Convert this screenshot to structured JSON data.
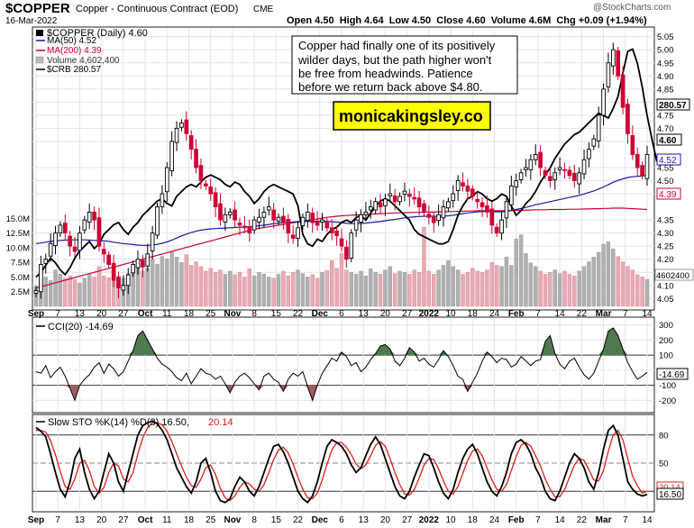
{
  "header": {
    "symbol": "$COPPER",
    "name": "Copper - Continuous Contract (EOD)",
    "exchange": "CME",
    "date": "16-Mar-2022",
    "ohlc_text": "Open 4.50  High 4.64  Low 4.50  Close 4.60  Volume 4.6M  Chg +0.09 (+1.94%)",
    "watermark": "@StockCharts.com"
  },
  "legend": {
    "price": "$COPPER (Daily) 4.60",
    "ma50": "MA(50) 4.52",
    "ma200": "MA(200) 4.39",
    "volume": "Volume 4,602,400",
    "crb": "$CRB 280.57"
  },
  "annotation": {
    "lines": [
      "Copper had finally one of its positively",
      "wilder days, but the path higher won't",
      "be free from headwinds. Patience",
      "before we return back above $4.80."
    ],
    "site": "monicakingsley.co"
  },
  "badges": {
    "crb": "280.57",
    "close": "4.60",
    "ma50": "4.52",
    "ma200": "4.39",
    "volume": "4602400",
    "cci": "-14.69",
    "sto_k": "16.50",
    "sto_d": "20.14"
  },
  "panels": {
    "cci_title": "CCI(20) -14.69",
    "sto_title_a": "Slow STO %K(14) %D(3) 16.50,",
    "sto_title_b": "20.14"
  },
  "colors": {
    "up": "#000000",
    "down": "#cc0033",
    "ma50": "#1a1aa8",
    "ma200": "#cc0033",
    "crb": "#000000",
    "vol_up": "#b0b0b0",
    "vol_down": "#e8aab4",
    "cci_fill": "#4f7a4f",
    "cci_neg_fill": "#a06060",
    "sto_d": "#e0201a",
    "grid": "#e4e4e4",
    "annotation_bg": "#ffff00"
  },
  "axes": {
    "price_ticks": [
      "5.05",
      "5.00",
      "4.95",
      "4.90",
      "4.85",
      "4.80",
      "4.75",
      "4.70",
      "4.65",
      "4.55",
      "4.50",
      "4.45",
      "4.35",
      "4.30",
      "4.25",
      "4.20",
      "4.15",
      "4.10",
      "4.05"
    ],
    "volume_ticks": [
      "15.0M",
      "12.5M",
      "10.0M",
      "7.5M",
      "5.0M",
      "2.5M"
    ],
    "cci_ticks": [
      "300",
      "200",
      "100",
      "-100",
      "-200"
    ],
    "sto_ticks": [
      "80",
      "50",
      "20"
    ],
    "x_labels": [
      "Sep",
      "7",
      "13",
      "20",
      "27",
      "Oct",
      "11",
      "18",
      "25",
      "Nov",
      "8",
      "15",
      "22",
      "Dec",
      "6",
      "13",
      "20",
      "27",
      "2022",
      "10",
      "18",
      "24",
      "Feb",
      "7",
      "14",
      "22",
      "Mar",
      "7",
      "14"
    ]
  },
  "chart_data": {
    "type": "candlestick",
    "price_range": [
      4.02,
      5.08
    ],
    "volume_range_millions": [
      0,
      17.5
    ],
    "cci_range": [
      -270,
      340
    ],
    "sto_range": [
      0,
      100
    ],
    "closes": [
      4.08,
      4.18,
      4.2,
      4.26,
      4.3,
      4.33,
      4.3,
      4.25,
      4.23,
      4.3,
      4.35,
      4.38,
      4.35,
      4.25,
      4.22,
      4.18,
      4.12,
      4.09,
      4.1,
      4.14,
      4.18,
      4.2,
      4.17,
      4.22,
      4.3,
      4.4,
      4.45,
      4.55,
      4.65,
      4.7,
      4.72,
      4.68,
      4.62,
      4.55,
      4.5,
      4.48,
      4.45,
      4.4,
      4.35,
      4.37,
      4.38,
      4.35,
      4.33,
      4.32,
      4.3,
      4.35,
      4.36,
      4.38,
      4.4,
      4.35,
      4.36,
      4.34,
      4.3,
      4.28,
      4.32,
      4.36,
      4.38,
      4.34,
      4.33,
      4.35,
      4.32,
      4.3,
      4.29,
      4.25,
      4.2,
      4.3,
      4.35,
      4.37,
      4.38,
      4.4,
      4.42,
      4.4,
      4.43,
      4.45,
      4.42,
      4.44,
      4.46,
      4.44,
      4.43,
      4.4,
      4.38,
      4.36,
      4.34,
      4.37,
      4.4,
      4.42,
      4.45,
      4.5,
      4.48,
      4.46,
      4.44,
      4.42,
      4.4,
      4.38,
      4.33,
      4.3,
      4.35,
      4.42,
      4.48,
      4.5,
      4.53,
      4.55,
      4.58,
      4.6,
      4.55,
      4.52,
      4.5,
      4.53,
      4.55,
      4.54,
      4.52,
      4.5,
      4.53,
      4.58,
      4.62,
      4.66,
      4.75,
      4.85,
      4.95,
      5.0,
      4.9,
      4.78,
      4.68,
      4.6,
      4.55,
      4.52,
      4.6
    ],
    "ma50": [
      4.26,
      4.262,
      4.265,
      4.268,
      4.27,
      4.272,
      4.273,
      4.274,
      4.274,
      4.274,
      4.274,
      4.273,
      4.272,
      4.271,
      4.27,
      4.268,
      4.265,
      4.262,
      4.26,
      4.258,
      4.256,
      4.254,
      4.253,
      4.253,
      4.254,
      4.257,
      4.261,
      4.266,
      4.273,
      4.281,
      4.289,
      4.296,
      4.302,
      4.307,
      4.311,
      4.314,
      4.316,
      4.317,
      4.318,
      4.319,
      4.32,
      4.321,
      4.322,
      4.323,
      4.324,
      4.326,
      4.328,
      4.33,
      4.333,
      4.336,
      4.338,
      4.34,
      4.341,
      4.342,
      4.343,
      4.344,
      4.345,
      4.345,
      4.345,
      4.345,
      4.344,
      4.343,
      4.342,
      4.34,
      4.337,
      4.336,
      4.336,
      4.337,
      4.338,
      4.34,
      4.342,
      4.344,
      4.347,
      4.35,
      4.352,
      4.355,
      4.358,
      4.36,
      4.362,
      4.363,
      4.364,
      4.364,
      4.364,
      4.364,
      4.365,
      4.366,
      4.368,
      4.371,
      4.374,
      4.377,
      4.379,
      4.381,
      4.382,
      4.383,
      4.382,
      4.381,
      4.381,
      4.383,
      4.386,
      4.39,
      4.394,
      4.398,
      4.403,
      4.408,
      4.412,
      4.416,
      4.42,
      4.424,
      4.428,
      4.432,
      4.436,
      4.44,
      4.444,
      4.449,
      4.455,
      4.461,
      4.468,
      4.476,
      4.485,
      4.494,
      4.501,
      4.507,
      4.512,
      4.515,
      4.517,
      4.518,
      4.52
    ],
    "ma200": [
      4.09,
      4.095,
      4.1,
      4.105,
      4.11,
      4.115,
      4.12,
      4.125,
      4.13,
      4.135,
      4.14,
      4.145,
      4.15,
      4.155,
      4.16,
      4.165,
      4.17,
      4.175,
      4.18,
      4.185,
      4.19,
      4.195,
      4.2,
      4.205,
      4.21,
      4.215,
      4.22,
      4.225,
      4.23,
      4.235,
      4.24,
      4.245,
      4.25,
      4.255,
      4.26,
      4.265,
      4.27,
      4.275,
      4.28,
      4.285,
      4.29,
      4.295,
      4.3,
      4.305,
      4.31,
      4.315,
      4.318,
      4.321,
      4.324,
      4.327,
      4.33,
      4.333,
      4.336,
      4.339,
      4.342,
      4.345,
      4.348,
      4.351,
      4.354,
      4.357,
      4.36,
      4.362,
      4.364,
      4.366,
      4.367,
      4.368,
      4.369,
      4.37,
      4.371,
      4.372,
      4.373,
      4.374,
      4.375,
      4.376,
      4.377,
      4.377,
      4.378,
      4.378,
      4.379,
      4.379,
      4.38,
      4.38,
      4.38,
      4.381,
      4.381,
      4.382,
      4.382,
      4.383,
      4.383,
      4.384,
      4.384,
      4.385,
      4.385,
      4.385,
      4.385,
      4.385,
      4.385,
      4.386,
      4.386,
      4.387,
      4.387,
      4.388,
      4.388,
      4.389,
      4.389,
      4.389,
      4.39,
      4.39,
      4.39,
      4.39,
      4.391,
      4.391,
      4.391,
      4.392,
      4.392,
      4.393,
      4.393,
      4.394,
      4.394,
      4.395,
      4.395,
      4.395,
      4.394,
      4.393,
      4.392,
      4.391,
      4.39
    ],
    "volume_millions": [
      3.5,
      4.2,
      5.0,
      4.4,
      6.2,
      5.5,
      4.8,
      5.2,
      4.6,
      4.0,
      4.8,
      5.5,
      5.0,
      6.8,
      5.2,
      4.9,
      4.5,
      5.1,
      4.8,
      5.6,
      6.3,
      7.0,
      6.0,
      6.5,
      8.0,
      7.2,
      8.5,
      8.1,
      9.2,
      8.4,
      7.5,
      8.8,
      7.0,
      7.6,
      6.8,
      6.0,
      6.5,
      5.8,
      6.2,
      5.5,
      6.0,
      5.4,
      5.8,
      5.0,
      6.4,
      5.2,
      5.8,
      5.5,
      5.0,
      4.8,
      5.5,
      6.0,
      5.2,
      5.8,
      6.2,
      5.6,
      5.0,
      5.4,
      4.8,
      5.8,
      6.1,
      7.8,
      6.5,
      9.0,
      6.2,
      5.8,
      5.5,
      6.0,
      5.2,
      6.4,
      5.8,
      5.5,
      6.2,
      6.8,
      5.6,
      6.0,
      5.8,
      5.5,
      6.2,
      5.8,
      13.5,
      6.0,
      5.5,
      6.2,
      7.0,
      7.8,
      6.8,
      6.2,
      5.5,
      5.8,
      6.5,
      6.0,
      5.8,
      6.2,
      7.5,
      7.0,
      6.8,
      8.4,
      7.0,
      11.5,
      12.2,
      9.0,
      7.4,
      6.8,
      6.0,
      5.5,
      5.8,
      6.2,
      5.6,
      6.0,
      5.5,
      5.2,
      6.0,
      6.8,
      7.6,
      8.4,
      9.2,
      10.6,
      11.0,
      9.8,
      8.5,
      7.6,
      6.8,
      6.2,
      5.4,
      5.0,
      4.6
    ],
    "crb": [
      232,
      234,
      237,
      240,
      238,
      235,
      233,
      236,
      240,
      243,
      245,
      247,
      244,
      246,
      250,
      252,
      254,
      255,
      252,
      250,
      253,
      255,
      258,
      260,
      262,
      264,
      265,
      263,
      262,
      266,
      268,
      270,
      271,
      270,
      272,
      274,
      275,
      274,
      273,
      271,
      270,
      272,
      271,
      268,
      266,
      263,
      265,
      268,
      270,
      271,
      270,
      269,
      268,
      267,
      262,
      250,
      246,
      245,
      248,
      247,
      250,
      252,
      253,
      255,
      256,
      255,
      257,
      258,
      256,
      259,
      262,
      264,
      265,
      264,
      262,
      260,
      258,
      256,
      252,
      250,
      249,
      248,
      247,
      246,
      246,
      247,
      252,
      258,
      262,
      265,
      266,
      268,
      267,
      265,
      264,
      265,
      267,
      266,
      262,
      258,
      260,
      263,
      265,
      268,
      272,
      275,
      278,
      282,
      285,
      288,
      290,
      292,
      293,
      295,
      297,
      299,
      301,
      300,
      299,
      303,
      308,
      318,
      327,
      328,
      322,
      312,
      300,
      290,
      280.57
    ],
    "cci": [
      -10,
      -20,
      30,
      -50,
      -10,
      20,
      -40,
      -120,
      -200,
      -100,
      -60,
      -30,
      20,
      50,
      -20,
      40,
      10,
      -40,
      -10,
      60,
      130,
      230,
      260,
      200,
      140,
      80,
      40,
      20,
      -10,
      -50,
      -70,
      -20,
      -90,
      -40,
      10,
      -20,
      -30,
      -60,
      -40,
      -90,
      -150,
      -80,
      -40,
      -20,
      -50,
      -90,
      -130,
      -40,
      -20,
      -60,
      -80,
      -140,
      -60,
      -20,
      -40,
      -10,
      -110,
      -200,
      -100,
      -20,
      30,
      80,
      60,
      120,
      90,
      30,
      50,
      -10,
      20,
      70,
      110,
      160,
      170,
      140,
      60,
      30,
      80,
      150,
      120,
      60,
      80,
      40,
      20,
      70,
      130,
      90,
      30,
      -40,
      -60,
      -140,
      -80,
      -20,
      60,
      120,
      90,
      50,
      80,
      70,
      20,
      40,
      90,
      60,
      30,
      60,
      70,
      190,
      230,
      110,
      40,
      10,
      60,
      80,
      20,
      -30,
      -60,
      -20,
      60,
      140,
      260,
      280,
      230,
      140,
      50,
      -10,
      -60,
      -40,
      -14.69
    ],
    "sto_k": [
      88,
      84,
      78,
      60,
      40,
      22,
      14,
      30,
      55,
      65,
      40,
      22,
      12,
      20,
      40,
      60,
      50,
      30,
      20,
      40,
      60,
      80,
      90,
      93,
      95,
      92,
      85,
      75,
      60,
      45,
      35,
      25,
      18,
      30,
      50,
      55,
      40,
      20,
      10,
      8,
      12,
      25,
      35,
      30,
      20,
      15,
      25,
      40,
      55,
      68,
      70,
      62,
      50,
      35,
      20,
      12,
      8,
      15,
      30,
      50,
      68,
      75,
      72,
      68,
      60,
      48,
      40,
      45,
      58,
      70,
      78,
      70,
      55,
      40,
      25,
      15,
      12,
      20,
      35,
      48,
      60,
      58,
      45,
      30,
      18,
      12,
      22,
      40,
      55,
      65,
      70,
      60,
      45,
      30,
      20,
      15,
      25,
      40,
      60,
      72,
      75,
      70,
      60,
      45,
      35,
      20,
      12,
      10,
      20,
      35,
      50,
      60,
      55,
      45,
      30,
      22,
      40,
      65,
      85,
      90,
      80,
      55,
      30,
      22,
      17,
      15,
      16.5
    ],
    "sto_d": [
      85,
      85,
      83,
      74,
      59,
      41,
      25,
      22,
      33,
      50,
      53,
      42,
      25,
      18,
      24,
      40,
      50,
      47,
      33,
      30,
      40,
      60,
      77,
      88,
      93,
      93,
      91,
      84,
      73,
      60,
      47,
      35,
      26,
      24,
      33,
      45,
      48,
      38,
      23,
      13,
      10,
      15,
      24,
      30,
      28,
      22,
      20,
      27,
      40,
      54,
      64,
      67,
      61,
      49,
      35,
      22,
      13,
      12,
      18,
      32,
      49,
      64,
      72,
      72,
      67,
      59,
      49,
      44,
      48,
      58,
      69,
      73,
      68,
      55,
      40,
      27,
      17,
      16,
      22,
      34,
      48,
      55,
      54,
      44,
      31,
      20,
      17,
      25,
      39,
      53,
      63,
      65,
      58,
      45,
      32,
      22,
      20,
      27,
      42,
      57,
      69,
      72,
      68,
      58,
      47,
      33,
      22,
      14,
      14,
      22,
      35,
      48,
      55,
      53,
      43,
      32,
      31,
      42,
      63,
      80,
      85,
      75,
      55,
      36,
      26,
      18,
      20.14
    ]
  }
}
